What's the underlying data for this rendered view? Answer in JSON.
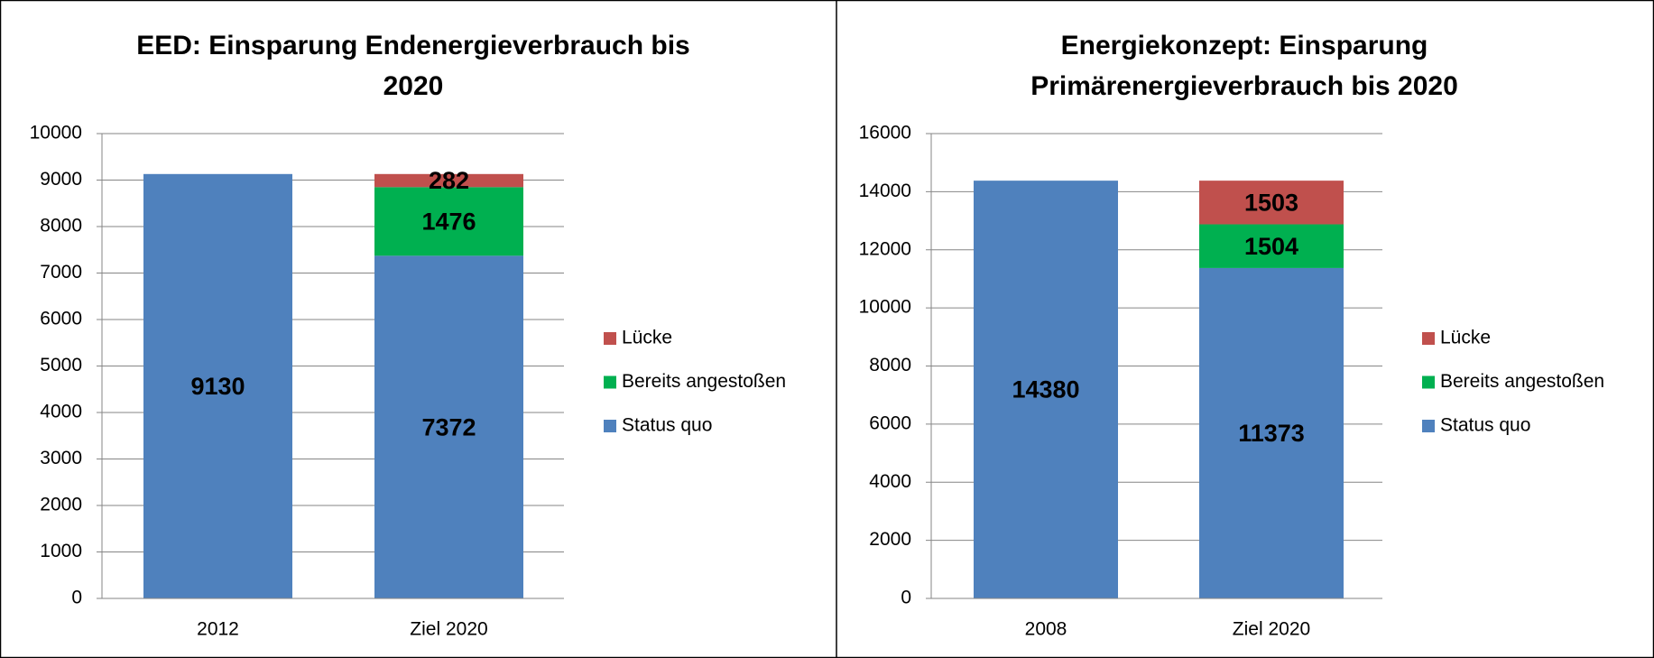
{
  "chart_data": [
    {
      "type": "bar",
      "stacked": true,
      "title": "EED: Einsparung Endenergieverbrauch bis 2020",
      "categories": [
        "2012",
        "Ziel 2020"
      ],
      "series": [
        {
          "name": "Status quo",
          "color": "#4f81bd",
          "values": [
            9130,
            7372
          ]
        },
        {
          "name": "Bereits angestoßen",
          "color": "#00b050",
          "values": [
            null,
            1476
          ]
        },
        {
          "name": "Lücke",
          "color": "#c0504d",
          "values": [
            null,
            282
          ]
        }
      ],
      "ylim": [
        0,
        10000
      ],
      "yticks": [
        0,
        1000,
        2000,
        3000,
        4000,
        5000,
        6000,
        7000,
        8000,
        9000,
        10000
      ],
      "grid": true,
      "legend": "right"
    },
    {
      "type": "bar",
      "stacked": true,
      "title": "Energiekonzept: Einsparung Primärenergieverbrauch bis 2020",
      "categories": [
        "2008",
        "Ziel 2020"
      ],
      "series": [
        {
          "name": "Status quo",
          "color": "#4f81bd",
          "values": [
            14380,
            11373
          ]
        },
        {
          "name": "Bereits angestoßen",
          "color": "#00b050",
          "values": [
            null,
            1504
          ]
        },
        {
          "name": "Lücke",
          "color": "#c0504d",
          "values": [
            null,
            1503
          ]
        }
      ],
      "ylim": [
        0,
        16000
      ],
      "yticks": [
        0,
        2000,
        4000,
        6000,
        8000,
        10000,
        12000,
        14000,
        16000
      ],
      "grid": true,
      "legend": "right"
    }
  ]
}
